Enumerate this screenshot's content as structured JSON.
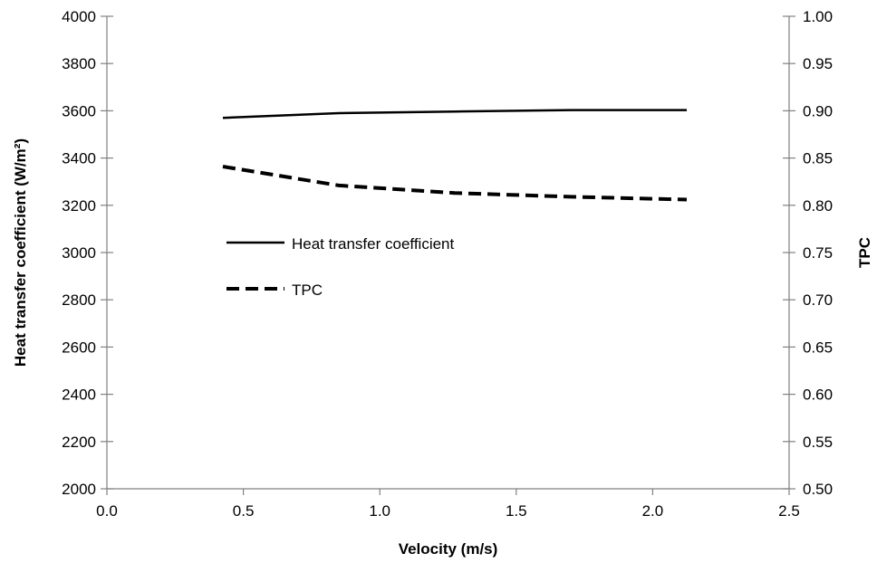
{
  "chart_data": {
    "type": "line",
    "xlabel": "Velocity (m/s)",
    "ylabel_left": "Heat transfer coefficient  (W/m²)",
    "ylabel_right": "TPC",
    "xlim": [
      0.0,
      2.5
    ],
    "ylim_left": [
      2000,
      4000
    ],
    "ylim_right": [
      0.5,
      1.0
    ],
    "x_ticks": [
      "0.0",
      "0.5",
      "1.0",
      "1.5",
      "2.0",
      "2.5"
    ],
    "y_left_ticks": [
      "2000",
      "2200",
      "2400",
      "2600",
      "2800",
      "3000",
      "3200",
      "3400",
      "3600",
      "3800",
      "4000"
    ],
    "y_right_ticks": [
      "0.50",
      "0.55",
      "0.60",
      "0.65",
      "0.70",
      "0.75",
      "0.80",
      "0.85",
      "0.90",
      "0.95",
      "1.00"
    ],
    "grid": false,
    "legend_position": "center-left",
    "series": [
      {
        "name": "Heat transfer coefficient",
        "axis": "left",
        "style": "solid",
        "color": "#000000",
        "x": [
          0.425,
          0.85,
          1.275,
          1.7,
          2.125
        ],
        "y": [
          3570,
          3590,
          3597,
          3603,
          3603
        ]
      },
      {
        "name": "TPC",
        "axis": "right",
        "style": "dashed",
        "color": "#000000",
        "x": [
          0.425,
          0.85,
          1.275,
          1.7,
          2.125
        ],
        "y": [
          0.841,
          0.821,
          0.813,
          0.809,
          0.806
        ]
      }
    ]
  }
}
